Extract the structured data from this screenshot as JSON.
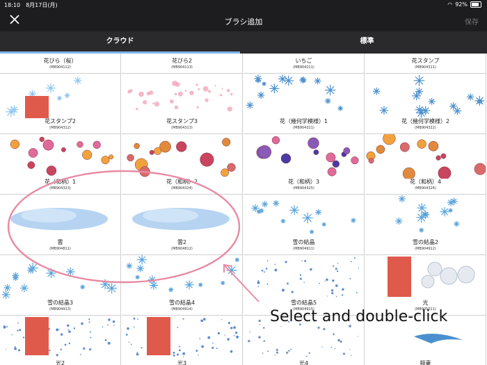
{
  "status": {
    "time": "18:10",
    "date": "8月17日(月)",
    "battery": "92%"
  },
  "header": {
    "title": "ブラシ追加",
    "save": "保存"
  },
  "tabs": [
    {
      "label": "クラウド"
    },
    {
      "label": "標準"
    }
  ],
  "cells": [
    {
      "name": "花びら（桜）",
      "code": "(MB904112)",
      "preview": "none"
    },
    {
      "name": "花びら2",
      "code": "(MB904113)",
      "preview": "none"
    },
    {
      "name": "いちご",
      "code": "(MB904211)",
      "preview": "none"
    },
    {
      "name": "花スタンプ",
      "code": "(MB904311)",
      "preview": "none"
    },
    {
      "name": "花スタンプ2",
      "code": "(MB904312)",
      "preview": "snow-red"
    },
    {
      "name": "花スタンプ3",
      "code": "(MB904313)",
      "preview": "pink"
    },
    {
      "name": "花（幾何学模様）1",
      "code": "(MB904321)",
      "preview": "blue-flowers"
    },
    {
      "name": "花（幾何学模様）2",
      "code": "(MB904322)",
      "preview": "blue-flowers"
    },
    {
      "name": "花（和柄）1",
      "code": "(MB904323)",
      "preview": "pink-flowers"
    },
    {
      "name": "花（和柄）2",
      "code": "(MB904324)",
      "preview": "orange-flowers"
    },
    {
      "name": "花（和柄）3",
      "code": "(MB904325)",
      "preview": "purple-flowers"
    },
    {
      "name": "花（和柄）4",
      "code": "(MB904326)",
      "preview": "orange-flowers"
    },
    {
      "name": "雲",
      "code": "(MB904811)",
      "preview": "cloud"
    },
    {
      "name": "雲2",
      "code": "(MB904812)",
      "preview": "cloud"
    },
    {
      "name": "雪の結晶",
      "code": "(MB904911)",
      "preview": "snow"
    },
    {
      "name": "雪の結晶2",
      "code": "(MB904912)",
      "preview": "snow"
    },
    {
      "name": "雪の結晶3",
      "code": "(MB904913)",
      "preview": "snow"
    },
    {
      "name": "雪の結晶4",
      "code": "(MB904914)",
      "preview": "snow"
    },
    {
      "name": "雪の結晶5",
      "code": "(MB904915)",
      "preview": "snow-dots"
    },
    {
      "name": "光",
      "code": "(MB905011)",
      "preview": "light-red"
    },
    {
      "name": "光2",
      "code": "",
      "preview": "dots-red"
    },
    {
      "name": "光3",
      "code": "",
      "preview": "dots-red"
    },
    {
      "name": "光4",
      "code": "",
      "preview": "dots"
    },
    {
      "name": "稲妻",
      "code": "",
      "preview": "lightning"
    }
  ],
  "annotation": {
    "text": "Select and double-click"
  },
  "colors": {
    "accent": "#7fb3e6",
    "circle": "#e88aa2",
    "red": "#e05a4b"
  }
}
